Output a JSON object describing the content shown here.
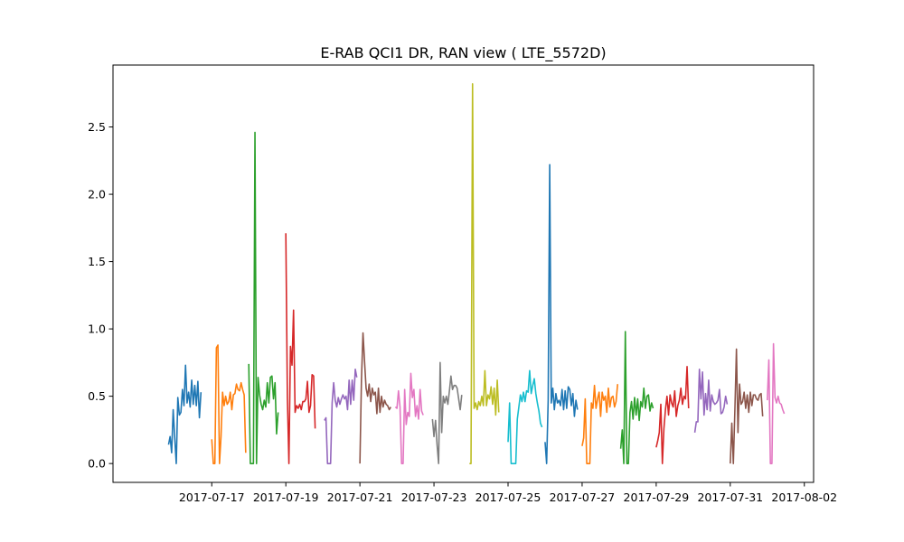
{
  "chart_data": {
    "type": "line",
    "title": "E-RAB QCI1 DR, RAN view ( LTE_5572D)",
    "xlabel": "",
    "ylabel": "",
    "x_axis": "date",
    "xlim": [
      "2017-07-14T08:00",
      "2017-08-02T06:00"
    ],
    "ylim": [
      -0.14,
      2.96
    ],
    "x_ticks": [
      "2017-07-17",
      "2017-07-19",
      "2017-07-21",
      "2017-07-23",
      "2017-07-25",
      "2017-07-27",
      "2017-07-29",
      "2017-07-31",
      "2017-08-02"
    ],
    "y_ticks": [
      0.0,
      0.5,
      1.0,
      1.5,
      2.0,
      2.5
    ],
    "y_tick_labels": [
      "0.0",
      "0.5",
      "1.0",
      "1.5",
      "2.0",
      "2.5"
    ],
    "grid": false,
    "legend": "none",
    "series": [
      {
        "color": "#1f77b4",
        "start": "2017-07-15T20:00",
        "values": [
          0.14,
          0.2,
          0.08,
          0.4,
          0.19,
          0.0,
          0.49,
          0.36,
          0.38,
          0.55,
          0.43,
          0.73,
          0.45,
          0.53,
          0.42,
          0.62,
          0.44,
          0.58,
          0.43,
          0.61,
          0.34,
          0.53
        ]
      },
      {
        "color": "#ff7f0e",
        "start": "2017-07-17T00:00",
        "values": [
          0.18,
          0.0,
          0.0,
          0.86,
          0.88,
          0.0,
          0.2,
          0.53,
          0.43,
          0.5,
          0.44,
          0.46,
          0.53,
          0.4,
          0.51,
          0.52,
          0.59,
          0.55,
          0.54,
          0.6,
          0.55,
          0.51,
          0.08
        ]
      },
      {
        "color": "#2ca02c",
        "start": "2017-07-18T00:00",
        "values": [
          0.74,
          0.0,
          0.0,
          0.0,
          2.46,
          0.0,
          0.64,
          0.51,
          0.44,
          0.4,
          0.47,
          0.42,
          0.6,
          0.45,
          0.64,
          0.65,
          0.48,
          0.6,
          0.22,
          0.38
        ]
      },
      {
        "color": "#d62728",
        "start": "2017-07-19T00:00",
        "values": [
          1.71,
          0.49,
          0.0,
          0.87,
          0.73,
          1.14,
          0.38,
          0.43,
          0.41,
          0.44,
          0.4,
          0.46,
          0.46,
          0.48,
          0.61,
          0.38,
          0.43,
          0.66,
          0.65,
          0.26
        ]
      },
      {
        "color": "#9467bd",
        "start": "2017-07-20T01:00",
        "values": [
          0.32,
          0.34,
          0.0,
          0.0,
          0.0,
          0.45,
          0.6,
          0.47,
          0.42,
          0.49,
          0.44,
          0.48,
          0.51,
          0.48,
          0.5,
          0.4,
          0.62,
          0.44,
          0.62,
          0.47,
          0.7,
          0.64
        ]
      },
      {
        "color": "#8c564b",
        "start": "2017-07-21T00:00",
        "values": [
          0.0,
          0.62,
          0.97,
          0.76,
          0.56,
          0.5,
          0.59,
          0.46,
          0.56,
          0.51,
          0.53,
          0.37,
          0.56,
          0.38,
          0.5,
          0.42,
          0.47,
          0.44,
          0.43,
          0.4,
          0.42
        ]
      },
      {
        "color": "#e377c2",
        "start": "2017-07-21T23:00",
        "values": [
          0.42,
          0.41,
          0.54,
          0.42,
          0.0,
          0.0,
          0.55,
          0.29,
          0.38,
          0.35,
          0.67,
          0.49,
          0.55,
          0.35,
          0.43,
          0.33,
          0.55,
          0.39,
          0.36
        ]
      },
      {
        "color": "#7f7f7f",
        "start": "2017-07-22T23:00",
        "values": [
          0.33,
          0.2,
          0.32,
          0.14,
          0.0,
          0.75,
          0.23,
          0.5,
          0.45,
          0.5,
          0.44,
          0.54,
          0.65,
          0.55,
          0.58,
          0.58,
          0.56,
          0.48,
          0.4,
          0.51
        ]
      },
      {
        "color": "#bcbd22",
        "start": "2017-07-23T23:00",
        "values": [
          0.0,
          0.0,
          2.82,
          0.41,
          0.45,
          0.4,
          0.46,
          0.43,
          0.5,
          0.43,
          0.69,
          0.43,
          0.51,
          0.48,
          0.57,
          0.44,
          0.56,
          0.36,
          0.62,
          0.38
        ]
      },
      {
        "color": "#17becf",
        "start": "2017-07-25T00:00",
        "values": [
          0.16,
          0.45,
          0.0,
          0.0,
          0.0,
          0.0,
          0.33,
          0.42,
          0.51,
          0.46,
          0.53,
          0.46,
          0.54,
          0.53,
          0.69,
          0.52,
          0.58,
          0.63,
          0.52,
          0.45,
          0.39,
          0.3,
          0.27
        ]
      },
      {
        "color": "#1f77b4",
        "start": "2017-07-26T00:00",
        "values": [
          0.16,
          0.0,
          0.47,
          2.22,
          0.45,
          0.56,
          0.4,
          0.52,
          0.45,
          0.47,
          0.43,
          0.55,
          0.4,
          0.54,
          0.41,
          0.57,
          0.55,
          0.43,
          0.52,
          0.35,
          0.47,
          0.4
        ]
      },
      {
        "color": "#ff7f0e",
        "start": "2017-07-27T00:00",
        "values": [
          0.13,
          0.19,
          0.48,
          0.0,
          0.0,
          0.0,
          0.45,
          0.41,
          0.58,
          0.41,
          0.48,
          0.53,
          0.35,
          0.53,
          0.47,
          0.5,
          0.38,
          0.56,
          0.42,
          0.49,
          0.5,
          0.42,
          0.46,
          0.59
        ]
      },
      {
        "color": "#2ca02c",
        "start": "2017-07-28T01:00",
        "values": [
          0.11,
          0.25,
          0.0,
          0.98,
          0.0,
          0.0,
          0.38,
          0.46,
          0.33,
          0.49,
          0.36,
          0.48,
          0.32,
          0.46,
          0.42,
          0.56,
          0.41,
          0.5,
          0.51,
          0.39,
          0.45,
          0.41
        ]
      },
      {
        "color": "#d62728",
        "start": "2017-07-29T00:00",
        "values": [
          0.12,
          0.17,
          0.23,
          0.44,
          0.0,
          0.26,
          0.4,
          0.5,
          0.36,
          0.51,
          0.45,
          0.42,
          0.54,
          0.35,
          0.43,
          0.47,
          0.56,
          0.44,
          0.5,
          0.48,
          0.72,
          0.41
        ]
      },
      {
        "color": "#9467bd",
        "start": "2017-07-30T01:00",
        "values": [
          0.23,
          0.31,
          0.31,
          0.7,
          0.48,
          0.68,
          0.36,
          0.52,
          0.4,
          0.62,
          0.39,
          0.51,
          0.46,
          0.44,
          0.45,
          0.47,
          0.55,
          0.37,
          0.38,
          0.42,
          0.5,
          0.44
        ]
      },
      {
        "color": "#8c564b",
        "start": "2017-07-31T00:00",
        "values": [
          0.0,
          0.3,
          0.0,
          0.4,
          0.85,
          0.23,
          0.59,
          0.44,
          0.46,
          0.53,
          0.41,
          0.51,
          0.38,
          0.53,
          0.43,
          0.51,
          0.51,
          0.48,
          0.47,
          0.51,
          0.52,
          0.35
        ]
      },
      {
        "color": "#e377c2",
        "start": "2017-08-01T00:00",
        "values": [
          0.47,
          0.77,
          0.0,
          0.0,
          0.89,
          0.49,
          0.45,
          0.5,
          0.45,
          0.44,
          0.4,
          0.37
        ]
      }
    ]
  }
}
